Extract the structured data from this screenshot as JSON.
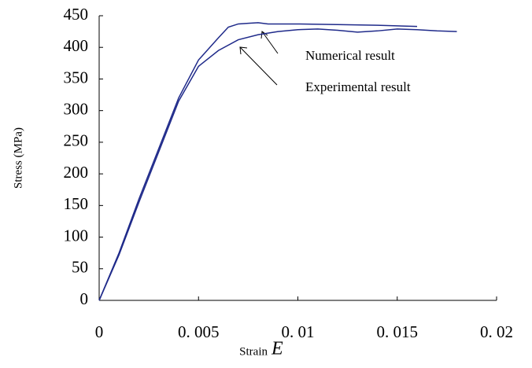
{
  "chart_data": {
    "type": "line",
    "xlabel": "Strain",
    "xlabel_symbol": "E",
    "ylabel": "Stress (MPa)",
    "annotations": [
      "Numerical result",
      "Experimental result"
    ],
    "xlim": [
      0,
      0.02
    ],
    "xticks": [
      0,
      {
        "value": 0.005,
        "label": "0. 005"
      },
      {
        "value": 0.01,
        "label": "0. 01"
      },
      {
        "value": 0.015,
        "label": "0. 015"
      },
      {
        "value": 0.02,
        "label": "0. 02"
      }
    ],
    "ylim": [
      0,
      450
    ],
    "yticks": [
      0,
      50,
      100,
      150,
      200,
      250,
      300,
      350,
      400,
      450
    ],
    "series": [
      {
        "color": "#1f2a8a",
        "x": [
          0,
          0.001,
          0.002,
          0.003,
          0.004,
          0.005,
          0.006,
          0.0065,
          0.007,
          0.0075,
          0.008,
          0.0085,
          0.01,
          0.012,
          0.014,
          0.016
        ],
        "values": [
          0,
          75,
          160,
          240,
          320,
          380,
          415,
          432,
          437,
          438,
          439,
          437,
          437,
          436,
          435,
          433
        ]
      },
      {
        "color": "#1f2a8a",
        "x": [
          0,
          0.001,
          0.002,
          0.003,
          0.004,
          0.005,
          0.006,
          0.007,
          0.008,
          0.009,
          0.01,
          0.011,
          0.012,
          0.013,
          0.014,
          0.015,
          0.016,
          0.017,
          0.018
        ],
        "values": [
          0,
          72,
          155,
          235,
          315,
          370,
          395,
          412,
          420,
          425,
          428,
          429,
          427,
          424,
          426,
          429,
          428,
          426,
          425
        ]
      }
    ]
  }
}
